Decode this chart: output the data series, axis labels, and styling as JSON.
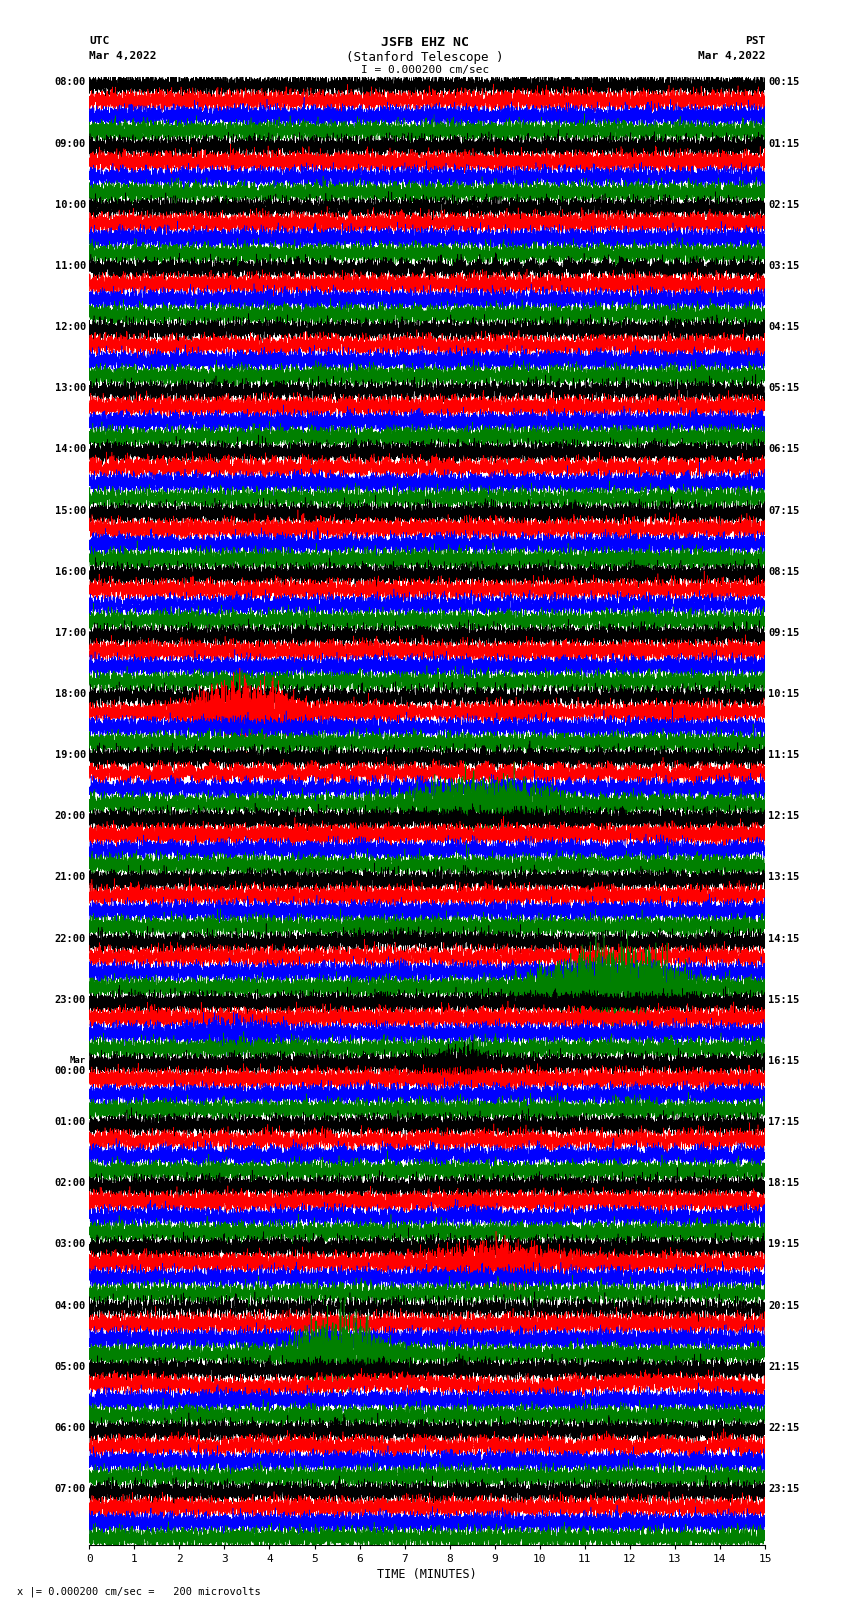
{
  "title_line1": "JSFB EHZ NC",
  "title_line2": "(Stanford Telescope )",
  "scale_label": "I = 0.000200 cm/sec",
  "left_header_line1": "UTC",
  "left_header_line2": "Mar 4,2022",
  "right_header_line1": "PST",
  "right_header_line2": "Mar 4,2022",
  "xlabel": "TIME (MINUTES)",
  "bottom_note": "x |= 0.000200 cm/sec =   200 microvolts",
  "colors": [
    "black",
    "red",
    "blue",
    "green"
  ],
  "x_min": 0,
  "x_max": 15,
  "x_ticks": [
    0,
    1,
    2,
    3,
    4,
    5,
    6,
    7,
    8,
    9,
    10,
    11,
    12,
    13,
    14,
    15
  ],
  "utc_labels": [
    "08:00",
    "09:00",
    "10:00",
    "11:00",
    "12:00",
    "13:00",
    "14:00",
    "15:00",
    "16:00",
    "17:00",
    "18:00",
    "19:00",
    "20:00",
    "21:00",
    "22:00",
    "23:00",
    "Mar\n00:00",
    "01:00",
    "02:00",
    "03:00",
    "04:00",
    "05:00",
    "06:00",
    "07:00"
  ],
  "pst_labels": [
    "00:15",
    "01:15",
    "02:15",
    "03:15",
    "04:15",
    "05:15",
    "06:15",
    "07:15",
    "08:15",
    "09:15",
    "10:15",
    "11:15",
    "12:15",
    "13:15",
    "14:15",
    "15:15",
    "16:15",
    "17:15",
    "18:15",
    "19:15",
    "20:15",
    "21:15",
    "22:15",
    "23:15"
  ],
  "num_hours": 24,
  "traces_per_hour": 4,
  "background_color": "white",
  "figwidth": 8.5,
  "figheight": 16.13,
  "dpi": 100,
  "trace_amplitude": 0.3,
  "trace_lw": 0.4,
  "N_points": 9000,
  "separator_interval": 1.0,
  "separator_color": "#aaaaaa",
  "separator_lw": 0.4
}
